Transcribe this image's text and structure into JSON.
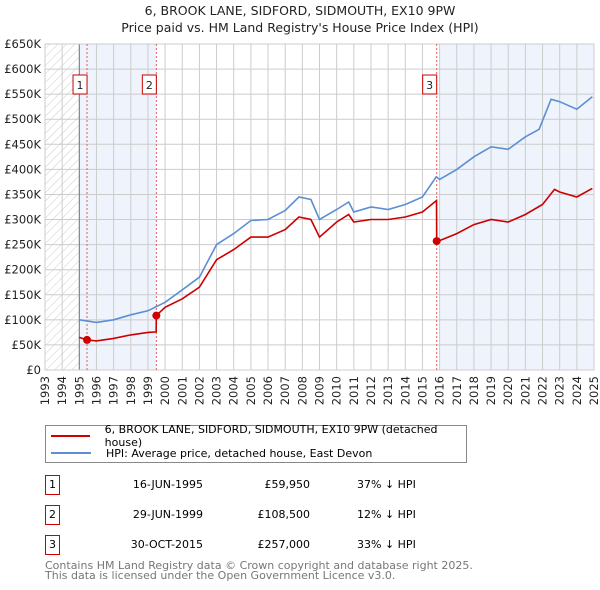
{
  "title": "6, BROOK LANE, SIDFORD, SIDMOUTH, EX10 9PW",
  "subtitle": "Price paid vs. HM Land Registry's House Price Index (HPI)",
  "colors": {
    "property": "#cc0000",
    "hpi": "#5b8fd4",
    "shade": "#eef3fc",
    "grid": "#cccccc"
  },
  "chart_data": {
    "type": "line",
    "title": "6, BROOK LANE, SIDFORD, SIDMOUTH, EX10 9PW — Price paid vs. HM Land Registry's House Price Index (HPI)",
    "xlim": [
      1993,
      2025
    ],
    "ylim": [
      0,
      650000
    ],
    "x_ticks": [
      "1993",
      "1994",
      "1995",
      "1996",
      "1997",
      "1998",
      "1999",
      "2000",
      "2001",
      "2002",
      "2003",
      "2004",
      "2005",
      "2006",
      "2007",
      "2008",
      "2009",
      "2010",
      "2011",
      "2012",
      "2013",
      "2014",
      "2015",
      "2016",
      "2017",
      "2018",
      "2019",
      "2020",
      "2021",
      "2022",
      "2023",
      "2024",
      "2025"
    ],
    "y_ticks": [
      {
        "v": 0,
        "label": "£0"
      },
      {
        "v": 50000,
        "label": "£50K"
      },
      {
        "v": 100000,
        "label": "£100K"
      },
      {
        "v": 150000,
        "label": "£150K"
      },
      {
        "v": 200000,
        "label": "£200K"
      },
      {
        "v": 250000,
        "label": "£250K"
      },
      {
        "v": 300000,
        "label": "£300K"
      },
      {
        "v": 350000,
        "label": "£350K"
      },
      {
        "v": 400000,
        "label": "£400K"
      },
      {
        "v": 450000,
        "label": "£450K"
      },
      {
        "v": 500000,
        "label": "£500K"
      },
      {
        "v": 550000,
        "label": "£550K"
      },
      {
        "v": 600000,
        "label": "£600K"
      },
      {
        "v": 650000,
        "label": "£650K"
      }
    ],
    "grid": true,
    "series": [
      {
        "name": "6, BROOK LANE, SIDFORD, SIDMOUTH, EX10 9PW (detached house)",
        "color": "#cc0000",
        "x": [
          1995,
          1995.45,
          1996,
          1997,
          1998,
          1999,
          1999.48,
          1999.49,
          2000,
          2001,
          2002,
          2003,
          2004,
          2005,
          2006,
          2007,
          2007.8,
          2008.5,
          2009,
          2010,
          2010.7,
          2011,
          2012,
          2013,
          2014,
          2015,
          2015.82,
          2015.83,
          2016,
          2017,
          2018,
          2019,
          2020,
          2021,
          2022,
          2022.7,
          2023,
          2024,
          2024.9
        ],
        "y": [
          65000,
          59950,
          58000,
          63000,
          70000,
          75000,
          76000,
          108500,
          125000,
          142000,
          165000,
          220000,
          240000,
          265000,
          265000,
          280000,
          305000,
          300000,
          265000,
          295000,
          310000,
          295000,
          300000,
          300000,
          305000,
          315000,
          338000,
          257000,
          258000,
          272000,
          290000,
          300000,
          295000,
          310000,
          330000,
          360000,
          355000,
          345000,
          362000
        ]
      },
      {
        "name": "HPI: Average price, detached house, East Devon",
        "color": "#5b8fd4",
        "x": [
          1995,
          1996,
          1997,
          1998,
          1999,
          2000,
          2001,
          2002,
          2003,
          2004,
          2005,
          2006,
          2007,
          2007.8,
          2008.5,
          2009,
          2010,
          2010.7,
          2011,
          2012,
          2013,
          2014,
          2015,
          2015.8,
          2016,
          2017,
          2018,
          2019,
          2020,
          2021,
          2021.8,
          2022.5,
          2023,
          2024,
          2024.9
        ],
        "y": [
          100000,
          95000,
          100000,
          110000,
          118000,
          135000,
          160000,
          185000,
          250000,
          272000,
          298000,
          300000,
          318000,
          345000,
          340000,
          300000,
          320000,
          335000,
          315000,
          325000,
          320000,
          330000,
          345000,
          385000,
          380000,
          400000,
          425000,
          445000,
          440000,
          465000,
          480000,
          540000,
          535000,
          520000,
          545000
        ]
      }
    ],
    "shaded_ranges": [
      [
        1995,
        1999.49
      ],
      [
        2016,
        2025
      ]
    ],
    "hatched_range": [
      1993,
      1995
    ],
    "sales": [
      {
        "n": "1",
        "x": 1995.45,
        "y": 59950
      },
      {
        "n": "2",
        "x": 1999.49,
        "y": 108500
      },
      {
        "n": "3",
        "x": 2015.83,
        "y": 257000
      }
    ]
  },
  "legend": [
    {
      "label": "6, BROOK LANE, SIDFORD, SIDMOUTH, EX10 9PW (detached house)"
    },
    {
      "label": "HPI: Average price, detached house, East Devon"
    }
  ],
  "transactions": [
    {
      "n": "1",
      "date": "16-JUN-1995",
      "price": "£59,950",
      "hpi": "37% ↓ HPI"
    },
    {
      "n": "2",
      "date": "29-JUN-1999",
      "price": "£108,500",
      "hpi": "12% ↓ HPI"
    },
    {
      "n": "3",
      "date": "30-OCT-2015",
      "price": "£257,000",
      "hpi": "33% ↓ HPI"
    }
  ],
  "footer": [
    "Contains HM Land Registry data © Crown copyright and database right 2025.",
    "This data is licensed under the Open Government Licence v3.0."
  ]
}
